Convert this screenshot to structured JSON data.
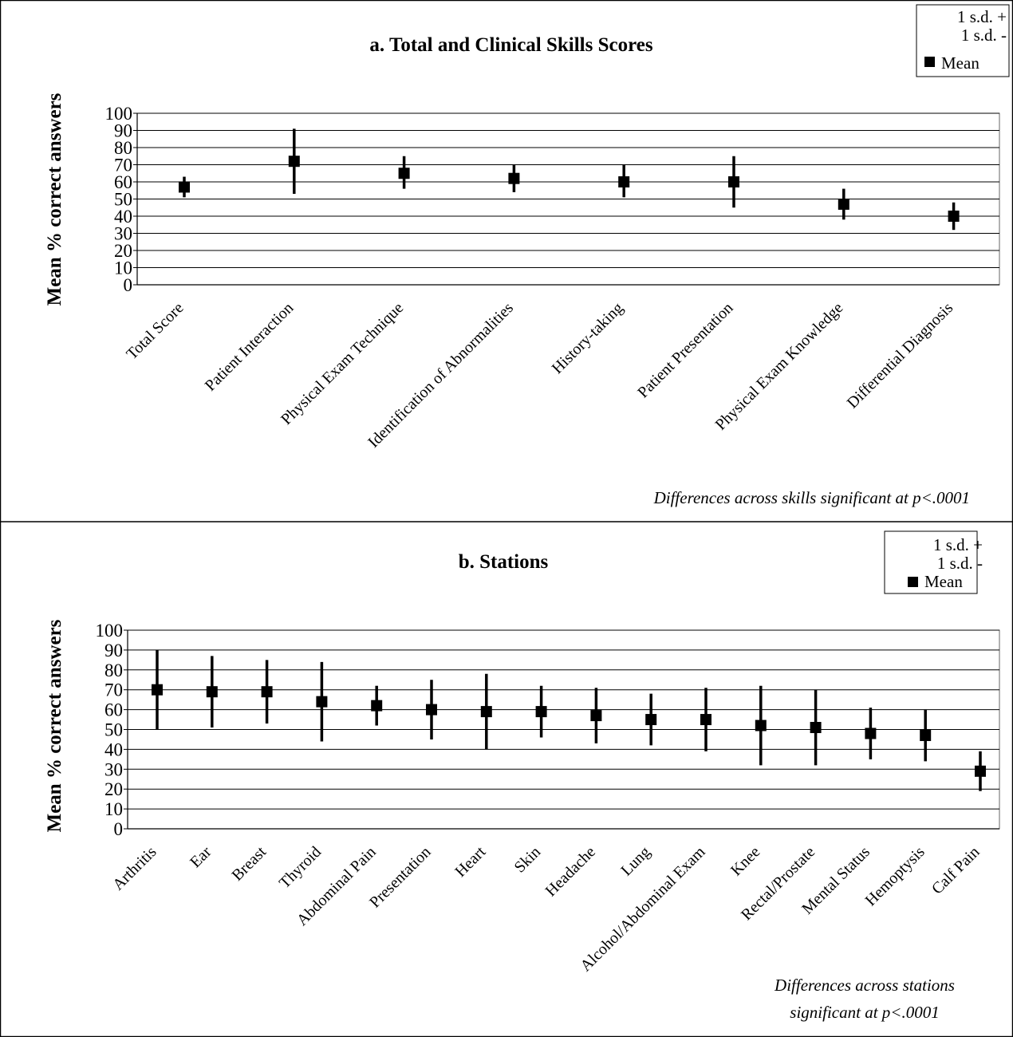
{
  "chart_data": [
    {
      "type": "scatter",
      "title": "a. Total and Clinical Skills Scores",
      "ylabel": "Mean % correct answers",
      "xlabel": "",
      "ylim": [
        0,
        100
      ],
      "yticks": [
        0,
        10,
        20,
        30,
        40,
        50,
        60,
        70,
        80,
        90,
        100
      ],
      "grid": true,
      "legend_position": "top-right",
      "legend": [
        "1 s.d. +",
        "1 s.d. -",
        "Mean"
      ],
      "categories": [
        "Total Score",
        "Patient Interaction",
        "Physical Exam Technique",
        "Identification of Abnormalities",
        "History-taking",
        "Patient Presentation",
        "Physical Exam Knowledge",
        "Differential Diagnosis"
      ],
      "series": [
        {
          "name": "1 s.d. +",
          "values": [
            63,
            91,
            75,
            70,
            70,
            75,
            56,
            48
          ]
        },
        {
          "name": "1 s.d. -",
          "values": [
            51,
            53,
            56,
            54,
            51,
            45,
            38,
            32
          ]
        },
        {
          "name": "Mean",
          "values": [
            57,
            72,
            65,
            62,
            60,
            60,
            47,
            40
          ]
        }
      ],
      "annotation": "Differences across skills significant at  p<.0001"
    },
    {
      "type": "scatter",
      "title": "b. Stations",
      "ylabel": "Mean % correct answers",
      "xlabel": "",
      "ylim": [
        0,
        100
      ],
      "yticks": [
        0,
        10,
        20,
        30,
        40,
        50,
        60,
        70,
        80,
        90,
        100
      ],
      "grid": true,
      "legend_position": "top-right",
      "legend": [
        "1 s.d. +",
        "1 s.d.  -",
        "Mean"
      ],
      "categories": [
        "Arthritis",
        "Ear",
        "Breast",
        "Thyroid",
        "Abdominal Pain",
        "Presentation",
        "Heart",
        "Skin",
        "Headache",
        "Lung",
        "Alcohol/Abdominal Exam",
        "Knee",
        "Rectal/Prostate",
        "Mental Status",
        "Hemoptysis",
        "Calf Pain"
      ],
      "series": [
        {
          "name": "1 s.d. +",
          "values": [
            90,
            87,
            85,
            84,
            72,
            75,
            78,
            72,
            71,
            68,
            71,
            72,
            70,
            61,
            60,
            39
          ]
        },
        {
          "name": "1 s.d. -",
          "values": [
            50,
            51,
            53,
            44,
            52,
            45,
            40,
            46,
            43,
            42,
            39,
            32,
            32,
            35,
            34,
            19
          ]
        },
        {
          "name": "Mean",
          "values": [
            70,
            69,
            69,
            64,
            62,
            60,
            59,
            59,
            57,
            55,
            55,
            52,
            51,
            48,
            47,
            29
          ]
        }
      ],
      "annotation": [
        "Differences across stations",
        "significant at p<.0001"
      ]
    }
  ]
}
